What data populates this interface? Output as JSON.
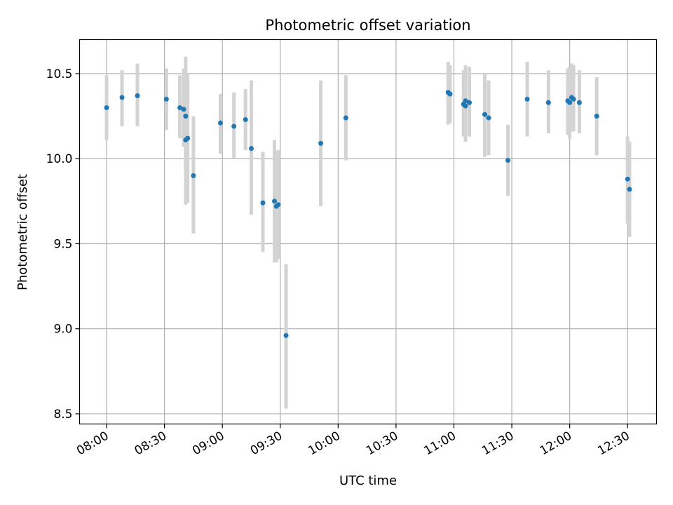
{
  "chart_data": {
    "type": "scatter",
    "title": "Photometric offset variation",
    "xlabel": "UTC time",
    "ylabel": "Photometric offset",
    "xlim": [
      "07:46",
      "12:45"
    ],
    "ylim": [
      8.44,
      10.7
    ],
    "x_ticks": [
      "08:00",
      "08:30",
      "09:00",
      "09:30",
      "10:00",
      "10:30",
      "11:00",
      "11:30",
      "12:00",
      "12:30"
    ],
    "y_ticks": [
      "8.5",
      "9.0",
      "9.5",
      "10.0",
      "10.5"
    ],
    "grid": true,
    "marker_color": "#1f77b4",
    "errorbar_color": "#d3d3d3",
    "points": [
      {
        "x": "08:00",
        "y": 10.3,
        "low": 10.11,
        "high": 10.49
      },
      {
        "x": "08:08",
        "y": 10.36,
        "low": 10.19,
        "high": 10.52
      },
      {
        "x": "08:16",
        "y": 10.37,
        "low": 10.19,
        "high": 10.56
      },
      {
        "x": "08:31",
        "y": 10.35,
        "low": 10.17,
        "high": 10.53
      },
      {
        "x": "08:38",
        "y": 10.3,
        "low": 10.12,
        "high": 10.49
      },
      {
        "x": "08:40",
        "y": 10.29,
        "low": 10.07,
        "high": 10.53
      },
      {
        "x": "08:41",
        "y": 10.25,
        "low": 9.9,
        "high": 10.6
      },
      {
        "x": "08:41",
        "y": 10.11,
        "low": 9.73,
        "high": 10.52
      },
      {
        "x": "08:42",
        "y": 10.12,
        "low": 9.74,
        "high": 10.5
      },
      {
        "x": "08:45",
        "y": 9.9,
        "low": 9.56,
        "high": 10.25
      },
      {
        "x": "08:59",
        "y": 10.21,
        "low": 10.03,
        "high": 10.38
      },
      {
        "x": "09:06",
        "y": 10.19,
        "low": 10.0,
        "high": 10.39
      },
      {
        "x": "09:12",
        "y": 10.23,
        "low": 10.05,
        "high": 10.41
      },
      {
        "x": "09:15",
        "y": 10.06,
        "low": 9.67,
        "high": 10.46
      },
      {
        "x": "09:21",
        "y": 9.74,
        "low": 9.45,
        "high": 10.04
      },
      {
        "x": "09:27",
        "y": 9.75,
        "low": 9.39,
        "high": 10.11
      },
      {
        "x": "09:28",
        "y": 9.72,
        "low": 9.39,
        "high": 10.04
      },
      {
        "x": "09:29",
        "y": 9.73,
        "low": 9.41,
        "high": 10.05
      },
      {
        "x": "09:33",
        "y": 8.96,
        "low": 8.53,
        "high": 9.38
      },
      {
        "x": "09:51",
        "y": 10.09,
        "low": 9.72,
        "high": 10.46
      },
      {
        "x": "10:04",
        "y": 10.24,
        "low": 9.99,
        "high": 10.49
      },
      {
        "x": "10:57",
        "y": 10.39,
        "low": 10.2,
        "high": 10.57
      },
      {
        "x": "10:58",
        "y": 10.38,
        "low": 10.21,
        "high": 10.55
      },
      {
        "x": "11:05",
        "y": 10.32,
        "low": 10.13,
        "high": 10.52
      },
      {
        "x": "11:06",
        "y": 10.31,
        "low": 10.1,
        "high": 10.53
      },
      {
        "x": "11:06",
        "y": 10.34,
        "low": 10.14,
        "high": 10.55
      },
      {
        "x": "11:08",
        "y": 10.33,
        "low": 10.13,
        "high": 10.54
      },
      {
        "x": "11:16",
        "y": 10.26,
        "low": 10.01,
        "high": 10.5
      },
      {
        "x": "11:18",
        "y": 10.24,
        "low": 10.02,
        "high": 10.46
      },
      {
        "x": "11:28",
        "y": 9.99,
        "low": 9.78,
        "high": 10.2
      },
      {
        "x": "11:38",
        "y": 10.35,
        "low": 10.13,
        "high": 10.57
      },
      {
        "x": "11:49",
        "y": 10.33,
        "low": 10.15,
        "high": 10.52
      },
      {
        "x": "11:59",
        "y": 10.34,
        "low": 10.14,
        "high": 10.53
      },
      {
        "x": "12:00",
        "y": 10.33,
        "low": 10.12,
        "high": 10.54
      },
      {
        "x": "12:01",
        "y": 10.36,
        "low": 10.16,
        "high": 10.56
      },
      {
        "x": "12:02",
        "y": 10.35,
        "low": 10.16,
        "high": 10.55
      },
      {
        "x": "12:05",
        "y": 10.33,
        "low": 10.15,
        "high": 10.52
      },
      {
        "x": "12:14",
        "y": 10.25,
        "low": 10.02,
        "high": 10.48
      },
      {
        "x": "12:30",
        "y": 9.88,
        "low": 9.62,
        "high": 10.13
      },
      {
        "x": "12:31",
        "y": 9.82,
        "low": 9.54,
        "high": 10.1
      }
    ]
  }
}
